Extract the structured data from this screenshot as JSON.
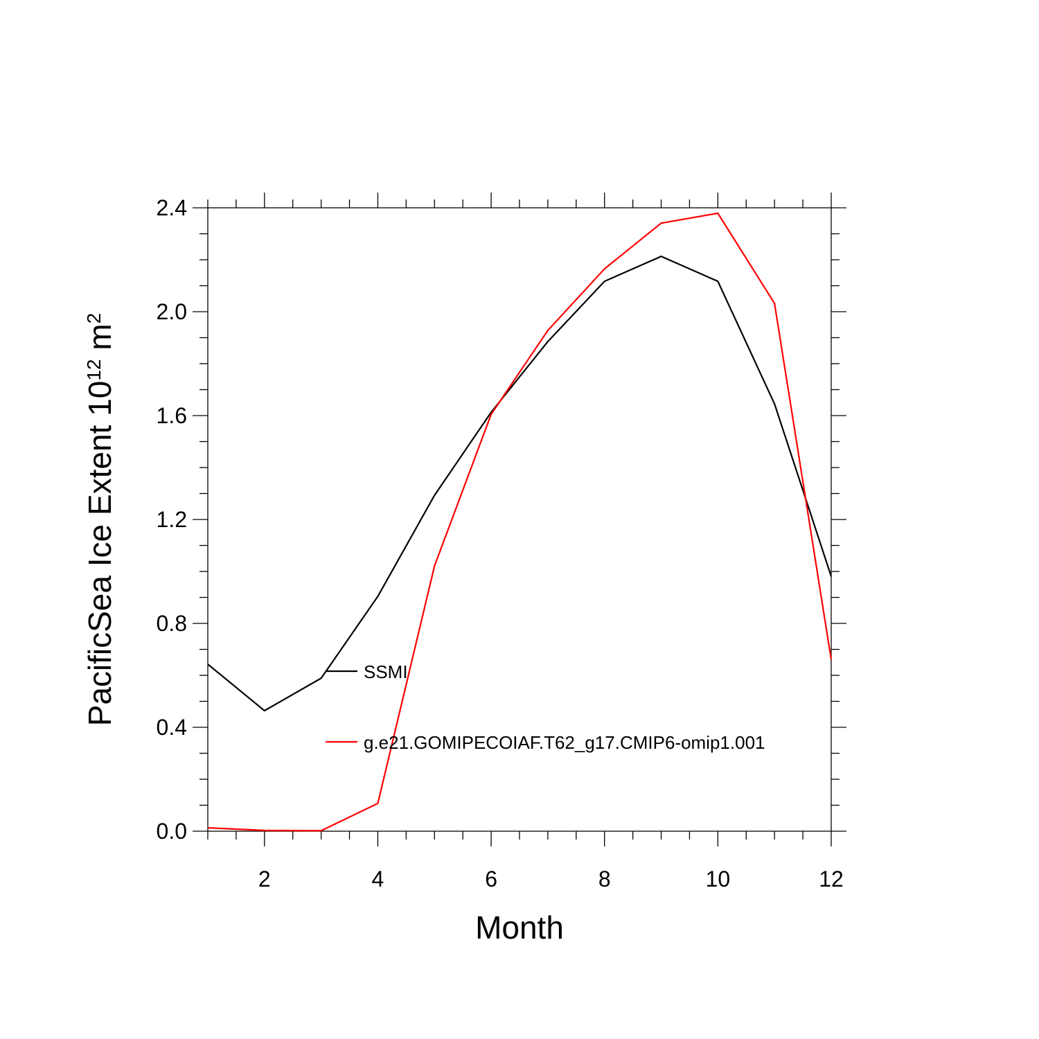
{
  "chart_data": {
    "type": "line",
    "xlabel": "Month",
    "ylabel_parts": [
      {
        "text": "PacificSea Ice Extent 10"
      },
      {
        "text": "12",
        "sup": true
      },
      {
        "text": " m"
      },
      {
        "text": "2",
        "sup": true
      }
    ],
    "x": [
      1,
      2,
      3,
      4,
      5,
      6,
      7,
      8,
      9,
      10,
      11,
      12
    ],
    "series": [
      {
        "name": "SSMI",
        "color": "#000000",
        "values": [
          0.643,
          0.464,
          0.589,
          0.904,
          1.293,
          1.613,
          1.885,
          2.117,
          2.213,
          2.117,
          1.645,
          0.981
        ]
      },
      {
        "name": "g.e21.GOMIPECOIAF.T62_g17.CMIP6-omip1.001",
        "color": "#ff0000",
        "values": [
          0.013,
          0.003,
          0.002,
          0.107,
          1.021,
          1.605,
          1.928,
          2.165,
          2.341,
          2.379,
          2.032,
          0.661
        ]
      }
    ],
    "xlim": [
      1,
      12
    ],
    "xticks": [
      2,
      4,
      6,
      8,
      10,
      12
    ],
    "ylim": [
      0,
      2.4
    ],
    "yticks": [
      {
        "value": 0,
        "label": "0.0"
      },
      0.4,
      0.8,
      1.2,
      1.6,
      {
        "value": 2,
        "label": "2.0"
      },
      2.4
    ]
  }
}
